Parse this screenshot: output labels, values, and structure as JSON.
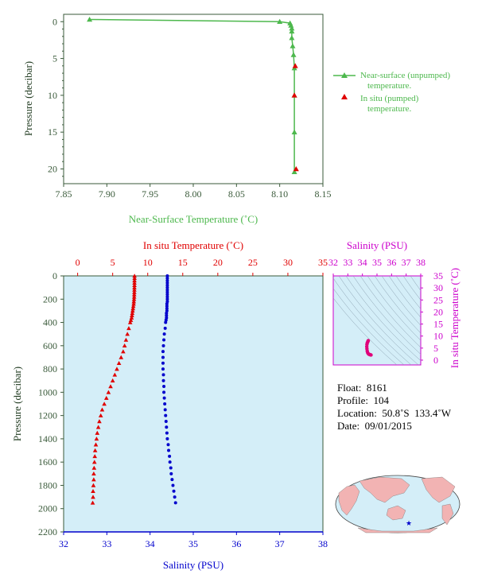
{
  "chart_data": [
    {
      "type": "line",
      "xlabel": "Near-Surface Temperature (˚C)",
      "ylabel": "Pressure (decibar)",
      "xlim": [
        7.85,
        8.15
      ],
      "ylim": [
        22,
        -1
      ],
      "x_ticks": [
        "7.85",
        "7.90",
        "7.95",
        "8.00",
        "8.05",
        "8.10",
        "8.15"
      ],
      "y_ticks": [
        "0",
        "5",
        "10",
        "15",
        "20"
      ],
      "legend_position": "right",
      "series": [
        {
          "name": "Near-surface (unpumped) temperature.",
          "marker": "triangle",
          "color": "#4db84d",
          "x": [
            7.88,
            8.1,
            8.112,
            8.113,
            8.114,
            8.114,
            8.114,
            8.115,
            8.116,
            8.117,
            8.117,
            8.117,
            8.117
          ],
          "y": [
            -0.3,
            0.0,
            0.2,
            0.5,
            0.9,
            1.3,
            2.2,
            3.3,
            4.5,
            6.3,
            10.0,
            15.0,
            20.4
          ]
        },
        {
          "name": "In situ (pumped) temperature.",
          "marker": "triangle",
          "color": "#e00000",
          "x": [
            8.118,
            8.117,
            8.119
          ],
          "y": [
            6.0,
            10.0,
            20.0
          ]
        }
      ],
      "legend": [
        "Near-surface (unpumped)",
        "temperature.",
        "In situ (pumped)",
        "temperature."
      ]
    },
    {
      "type": "line",
      "xlabel_top": "In situ Temperature (˚C)",
      "xlabel_bottom": "Salinity (PSU)",
      "ylabel": "Pressure (decibar)",
      "xlim_top": [
        -2,
        35
      ],
      "xlim_bottom": [
        32,
        38
      ],
      "ylim": [
        2200,
        0
      ],
      "x_ticks_top": [
        "0",
        "5",
        "10",
        "15",
        "20",
        "25",
        "30",
        "35"
      ],
      "x_ticks_bottom": [
        "32",
        "33",
        "34",
        "35",
        "36",
        "37",
        "38"
      ],
      "y_ticks": [
        "0",
        "200",
        "400",
        "600",
        "800",
        "1000",
        "1200",
        "1400",
        "1600",
        "1800",
        "2000",
        "2200"
      ],
      "background": "#d4eef8",
      "series": [
        {
          "name": "temperature",
          "color": "#e00000",
          "marker": "triangle",
          "pressure": [
            0,
            20,
            40,
            60,
            80,
            100,
            120,
            140,
            160,
            180,
            200,
            220,
            240,
            260,
            280,
            300,
            320,
            340,
            360,
            380,
            400,
            450,
            500,
            550,
            600,
            650,
            700,
            750,
            800,
            850,
            900,
            950,
            1000,
            1050,
            1100,
            1150,
            1200,
            1250,
            1300,
            1350,
            1400,
            1450,
            1500,
            1550,
            1600,
            1650,
            1700,
            1750,
            1800,
            1850,
            1900,
            1950
          ],
          "values": [
            8.12,
            8.12,
            8.11,
            8.11,
            8.11,
            8.1,
            8.1,
            8.09,
            8.08,
            8.07,
            8.05,
            8.02,
            8.0,
            7.95,
            7.9,
            7.85,
            7.8,
            7.75,
            7.7,
            7.6,
            7.5,
            7.3,
            7.1,
            6.9,
            6.7,
            6.5,
            6.2,
            5.9,
            5.6,
            5.3,
            5.0,
            4.7,
            4.4,
            4.1,
            3.8,
            3.5,
            3.3,
            3.1,
            2.95,
            2.8,
            2.7,
            2.6,
            2.5,
            2.45,
            2.4,
            2.35,
            2.3,
            2.3,
            2.25,
            2.2,
            2.2,
            2.15
          ]
        },
        {
          "name": "salinity",
          "color": "#0000cc",
          "marker": "dot",
          "pressure": [
            0,
            20,
            40,
            60,
            80,
            100,
            120,
            140,
            160,
            180,
            200,
            220,
            240,
            260,
            280,
            300,
            320,
            340,
            360,
            380,
            400,
            450,
            500,
            550,
            600,
            650,
            700,
            750,
            800,
            850,
            900,
            950,
            1000,
            1050,
            1100,
            1150,
            1200,
            1250,
            1300,
            1350,
            1400,
            1450,
            1500,
            1550,
            1600,
            1650,
            1700,
            1750,
            1800,
            1850,
            1900,
            1950
          ],
          "values": [
            34.4,
            34.4,
            34.4,
            34.4,
            34.4,
            34.4,
            34.4,
            34.4,
            34.4,
            34.4,
            34.4,
            34.4,
            34.39,
            34.39,
            34.39,
            34.39,
            34.38,
            34.38,
            34.38,
            34.37,
            34.36,
            34.35,
            34.33,
            34.32,
            34.31,
            34.3,
            34.3,
            34.3,
            34.3,
            34.31,
            34.31,
            34.32,
            34.32,
            34.33,
            34.34,
            34.35,
            34.36,
            34.37,
            34.38,
            34.39,
            34.4,
            34.42,
            34.43,
            34.45,
            34.46,
            34.48,
            34.49,
            34.51,
            34.53,
            34.55,
            34.57,
            34.59
          ]
        }
      ]
    },
    {
      "type": "scatter",
      "xlabel": "Salinity (PSU)",
      "ylabel": "In situ Temperature (˚C)",
      "xlim": [
        32,
        38
      ],
      "ylim": [
        -2,
        35
      ],
      "x_ticks": [
        "32",
        "33",
        "34",
        "35",
        "36",
        "37",
        "38"
      ],
      "y_ticks": [
        "0",
        "5",
        "10",
        "15",
        "20",
        "25",
        "30",
        "35"
      ],
      "color": "#e0007a",
      "x": [
        34.4,
        34.38,
        34.36,
        34.33,
        34.31,
        34.3,
        34.31,
        34.33,
        34.36,
        34.4,
        34.45,
        34.5,
        34.55,
        34.59
      ],
      "y": [
        8.1,
        7.8,
        7.5,
        7.1,
        6.5,
        5.6,
        4.7,
        3.8,
        3.1,
        2.7,
        2.45,
        2.3,
        2.2,
        2.15
      ]
    }
  ],
  "info": {
    "float_label": "Float:",
    "float_value": "8161",
    "profile_label": "Profile:",
    "profile_value": "104",
    "location_label": "Location:",
    "location_value": "50.8˚S  133.4˚W",
    "date_label": "Date:",
    "date_value": "09/01/2015"
  },
  "colors": {
    "green": "#4db84d",
    "red": "#e00000",
    "blue": "#0000cc",
    "magenta": "#cc00cc",
    "axis": "#1f3a1f"
  }
}
